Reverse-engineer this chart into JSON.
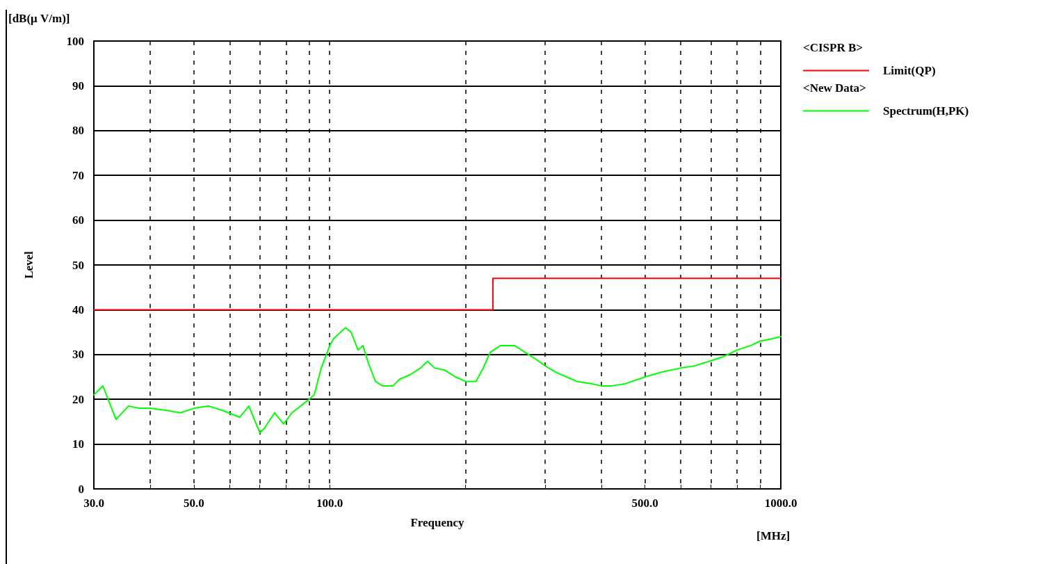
{
  "chart_data": {
    "type": "line",
    "xlabel": "Frequency",
    "ylabel": "Level",
    "annotations": [
      "[dB(μ V/m)]",
      "[MHz]",
      "<CISPR B>",
      "<New Data>"
    ],
    "log": "x",
    "grid": true,
    "legend": "right",
    "line_style": "solid",
    "marker": "none",
    "xlim": [
      30,
      1000
    ],
    "xticks": [
      {
        "value": 30,
        "label": "30.0"
      },
      {
        "value": 40,
        "label": null
      },
      {
        "value": 50,
        "label": "50.0"
      },
      {
        "value": 60,
        "label": null
      },
      {
        "value": 70,
        "label": null
      },
      {
        "value": 80,
        "label": null
      },
      {
        "value": 90,
        "label": null
      },
      {
        "value": 100,
        "label": "100.0"
      },
      {
        "value": 200,
        "label": null
      },
      {
        "value": 300,
        "label": null
      },
      {
        "value": 400,
        "label": null
      },
      {
        "value": 500,
        "label": "500.0"
      },
      {
        "value": 600,
        "label": null
      },
      {
        "value": 700,
        "label": null
      },
      {
        "value": 800,
        "label": null
      },
      {
        "value": 900,
        "label": null
      },
      {
        "value": 1000,
        "label": "1000.0"
      }
    ],
    "ylim": [
      0,
      100
    ],
    "yticks": [
      0,
      10,
      20,
      30,
      40,
      50,
      60,
      70,
      80,
      90,
      100
    ],
    "series": [
      {
        "name": "Limit(QP)",
        "type": "step",
        "color": "#ff0000",
        "x": [
          30,
          230,
          1000
        ],
        "values": [
          40,
          47,
          47
        ]
      },
      {
        "name": "Spectrum(H,PK)",
        "color": "#00ff00",
        "x": [
          30,
          31.4,
          33.6,
          35.8,
          37.8,
          40,
          43.5,
          46.7,
          50,
          53.9,
          57.9,
          63.2,
          66.2,
          70,
          71.6,
          75.5,
          79,
          82.5,
          87.5,
          90,
          92.4,
          95.8,
          100,
          102,
          105.7,
          108.4,
          111.5,
          115.6,
          118.5,
          121.9,
          126.3,
          130.9,
          138,
          143,
          150.8,
          159,
          164.8,
          170.7,
          180,
          190,
          200,
          211,
          219,
          227,
          239,
          257,
          271,
          286,
          300,
          318,
          335,
          353,
          380,
          400,
          422,
          453,
          500,
          541,
          600,
          646,
          694,
          745,
          800,
          858,
          900,
          955,
          1000
        ],
        "values": [
          21,
          23,
          15.5,
          18.5,
          18,
          18,
          17.5,
          17,
          18,
          18.5,
          17.5,
          16,
          18.5,
          12.5,
          13.5,
          17,
          14.5,
          17,
          19,
          20,
          21,
          27,
          32,
          33.5,
          35,
          36,
          35,
          31,
          32,
          28,
          24,
          23,
          23,
          24.5,
          25.5,
          27,
          28.5,
          27,
          26.5,
          25,
          24,
          24,
          27,
          30.5,
          32,
          32,
          30.5,
          29,
          27.5,
          26,
          25,
          24,
          23.5,
          23,
          23,
          23.5,
          25,
          26,
          27,
          27.5,
          28.5,
          29.5,
          31,
          32,
          33,
          33.5,
          34
        ]
      }
    ]
  }
}
